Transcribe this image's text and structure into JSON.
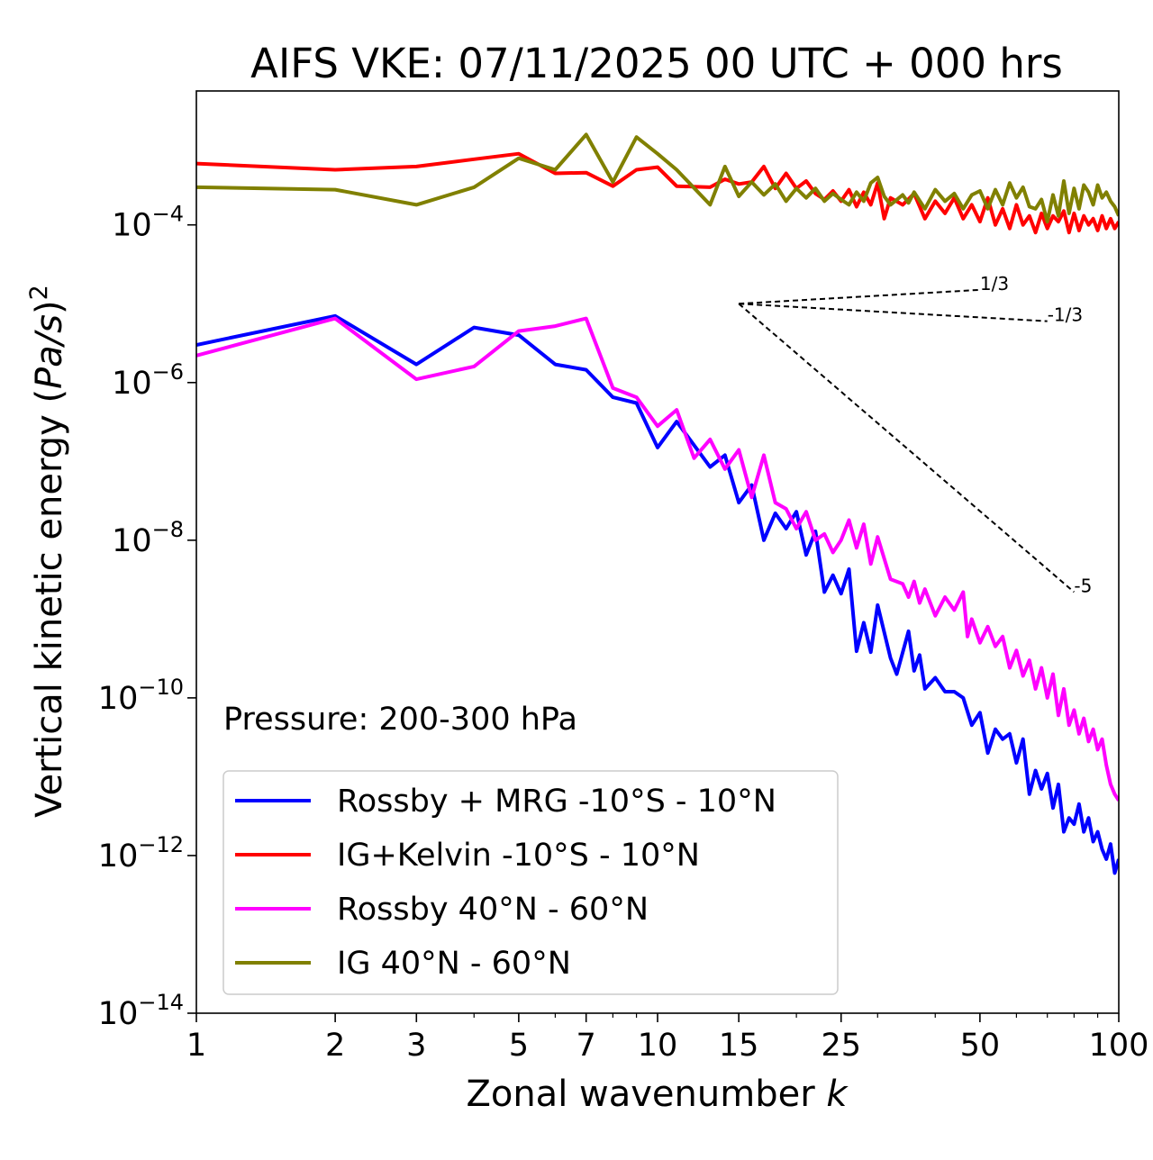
{
  "chart_data": {
    "type": "line",
    "title": "AIFS VKE: 07/11/2025 00 UTC + 000 hrs",
    "xlabel": "Zonal wavenumber k",
    "ylabel": "Vertical kinetic energy (Pa/s)^2",
    "xscale": "log",
    "yscale": "log",
    "xlim": [
      1,
      100
    ],
    "ylim": [
      1e-14,
      0.005
    ],
    "x_ticks": [
      1,
      2,
      3,
      5,
      7,
      10,
      15,
      25,
      50,
      100
    ],
    "x_tick_labels": [
      "1",
      "2",
      "3",
      "5",
      "7",
      "10",
      "15",
      "25",
      "50",
      "100"
    ],
    "y_ticks": [
      {
        "value": 0.0001,
        "base": "10",
        "exp": "−4"
      },
      {
        "value": 1e-06,
        "base": "10",
        "exp": "−6"
      },
      {
        "value": 1e-08,
        "base": "10",
        "exp": "−8"
      },
      {
        "value": 1e-10,
        "base": "10",
        "exp": "−10"
      },
      {
        "value": 1e-12,
        "base": "10",
        "exp": "−12"
      },
      {
        "value": 1e-14,
        "base": "10",
        "exp": "−14"
      }
    ],
    "annotation": "Pressure: 200-300 hPa",
    "legend_position": "lower-left",
    "series": [
      {
        "name": "Rossby + MRG -10°S - 10°N",
        "color": "#0000ff",
        "points": [
          [
            1,
            3e-06
          ],
          [
            2,
            7e-06
          ],
          [
            3,
            1.7e-06
          ],
          [
            4,
            5e-06
          ],
          [
            5,
            4e-06
          ],
          [
            6,
            1.7e-06
          ],
          [
            7,
            1.45e-06
          ],
          [
            8,
            6.5e-07
          ],
          [
            9,
            5.5e-07
          ],
          [
            10,
            1.5e-07
          ],
          [
            11,
            3.2e-07
          ],
          [
            13,
            8.5e-08
          ],
          [
            14,
            1.2e-07
          ],
          [
            15,
            3e-08
          ],
          [
            16,
            5e-08
          ],
          [
            17,
            1e-08
          ],
          [
            18,
            2.2e-08
          ],
          [
            19,
            1.4e-08
          ],
          [
            20,
            2.3e-08
          ],
          [
            21,
            6.5e-09
          ],
          [
            22,
            1.3e-08
          ],
          [
            23,
            2.2e-09
          ],
          [
            24,
            3.6e-09
          ],
          [
            25,
            2.1e-09
          ],
          [
            26,
            4.3e-09
          ],
          [
            27,
            3.9e-10
          ],
          [
            28,
            9e-10
          ],
          [
            29,
            3.8e-10
          ],
          [
            30,
            1.5e-09
          ],
          [
            32,
            3.2e-10
          ],
          [
            33,
            2e-10
          ],
          [
            35,
            7e-10
          ],
          [
            36,
            2.2e-10
          ],
          [
            37,
            3.5e-10
          ],
          [
            38,
            1.3e-10
          ],
          [
            40,
            1.8e-10
          ],
          [
            42,
            1.2e-10
          ],
          [
            44,
            1.2e-10
          ],
          [
            46,
            1e-10
          ],
          [
            48,
            4.5e-11
          ],
          [
            50,
            6.5e-11
          ],
          [
            52,
            2e-11
          ],
          [
            54,
            4e-11
          ],
          [
            56,
            3e-11
          ],
          [
            58,
            3.5e-11
          ],
          [
            60,
            1.5e-11
          ],
          [
            62,
            3e-11
          ],
          [
            64,
            6e-12
          ],
          [
            66,
            1.2e-11
          ],
          [
            68,
            7e-12
          ],
          [
            70,
            1.1e-11
          ],
          [
            72,
            4e-12
          ],
          [
            74,
            8e-12
          ],
          [
            76,
            2e-12
          ],
          [
            78,
            3e-12
          ],
          [
            80,
            2.5e-12
          ],
          [
            82,
            4.5e-12
          ],
          [
            84,
            2e-12
          ],
          [
            86,
            3e-12
          ],
          [
            88,
            1.5e-12
          ],
          [
            90,
            2e-12
          ],
          [
            92,
            1.2e-12
          ],
          [
            94,
            9e-13
          ],
          [
            96,
            1.4e-12
          ],
          [
            98,
            6e-13
          ],
          [
            100,
            9e-13
          ]
        ]
      },
      {
        "name": "IG+Kelvin -10°S - 10°N",
        "color": "#ff0000",
        "points": [
          [
            1,
            0.0006
          ],
          [
            2,
            0.0005
          ],
          [
            3,
            0.00055
          ],
          [
            4,
            0.00068
          ],
          [
            5,
            0.0008
          ],
          [
            6,
            0.00045
          ],
          [
            7,
            0.00046
          ],
          [
            8,
            0.00031
          ],
          [
            9,
            0.0005
          ],
          [
            10,
            0.00054
          ],
          [
            11,
            0.00031
          ],
          [
            13,
            0.0003
          ],
          [
            14,
            0.00038
          ],
          [
            15,
            0.00033
          ],
          [
            16,
            0.00035
          ],
          [
            17,
            0.00055
          ],
          [
            18,
            0.00029
          ],
          [
            19,
            0.00045
          ],
          [
            20,
            0.00029
          ],
          [
            21,
            0.00036
          ],
          [
            22,
            0.00025
          ],
          [
            23,
            0.00021
          ],
          [
            24,
            0.00027
          ],
          [
            25,
            0.0002
          ],
          [
            26,
            0.00028
          ],
          [
            27,
            0.00017
          ],
          [
            28,
            0.00026
          ],
          [
            29,
            0.00018
          ],
          [
            30,
            0.00034
          ],
          [
            31,
            0.00012
          ],
          [
            32,
            0.00022
          ],
          [
            34,
            0.00018
          ],
          [
            36,
            0.00025
          ],
          [
            38,
            0.00012
          ],
          [
            40,
            0.0002
          ],
          [
            42,
            0.00014
          ],
          [
            44,
            0.00022
          ],
          [
            46,
            0.00012
          ],
          [
            48,
            0.00018
          ],
          [
            50,
            0.00011
          ],
          [
            52,
            0.00022
          ],
          [
            54,
            0.0001
          ],
          [
            56,
            0.00016
          ],
          [
            58,
            9e-05
          ],
          [
            60,
            0.00018
          ],
          [
            62,
            0.0001
          ],
          [
            64,
            0.00013
          ],
          [
            66,
            8e-05
          ],
          [
            68,
            0.00014
          ],
          [
            70,
            9e-05
          ],
          [
            72,
            0.00013
          ],
          [
            74,
            0.00011
          ],
          [
            76,
            0.00015
          ],
          [
            78,
            8e-05
          ],
          [
            80,
            0.00014
          ],
          [
            82,
            8.5e-05
          ],
          [
            84,
            0.00013
          ],
          [
            86,
            0.0001
          ],
          [
            88,
            0.00012
          ],
          [
            90,
            8.5e-05
          ],
          [
            92,
            0.00013
          ],
          [
            94,
            9e-05
          ],
          [
            96,
            0.00012
          ],
          [
            98,
            9e-05
          ],
          [
            100,
            0.00011
          ]
        ]
      },
      {
        "name": "Rossby 40°N - 60°N",
        "color": "#ff00ff",
        "points": [
          [
            1,
            2.2e-06
          ],
          [
            2,
            6.5e-06
          ],
          [
            3,
            1.1e-06
          ],
          [
            4,
            1.6e-06
          ],
          [
            5,
            4.5e-06
          ],
          [
            6,
            5.2e-06
          ],
          [
            7,
            6.5e-06
          ],
          [
            8,
            8.5e-07
          ],
          [
            9,
            6.5e-07
          ],
          [
            10,
            2.8e-07
          ],
          [
            11,
            4.5e-07
          ],
          [
            12,
            1.1e-07
          ],
          [
            13,
            1.9e-07
          ],
          [
            14,
            8e-08
          ],
          [
            15,
            1.4e-07
          ],
          [
            16,
            3.5e-08
          ],
          [
            17,
            1.2e-07
          ],
          [
            18,
            3e-08
          ],
          [
            19,
            2.5e-08
          ],
          [
            20,
            1.4e-08
          ],
          [
            21,
            2.3e-08
          ],
          [
            22,
            1e-08
          ],
          [
            23,
            1.2e-08
          ],
          [
            24,
            7e-09
          ],
          [
            25,
            1e-08
          ],
          [
            26,
            1.8e-08
          ],
          [
            27,
            8e-09
          ],
          [
            28,
            1.6e-08
          ],
          [
            29,
            5e-09
          ],
          [
            30,
            1.1e-08
          ],
          [
            32,
            3.2e-09
          ],
          [
            34,
            2.8e-09
          ],
          [
            35,
            1.9e-09
          ],
          [
            36,
            3e-09
          ],
          [
            37,
            1.6e-09
          ],
          [
            38,
            2.4e-09
          ],
          [
            40,
            1.1e-09
          ],
          [
            42,
            1.9e-09
          ],
          [
            44,
            1.3e-09
          ],
          [
            46,
            2.2e-09
          ],
          [
            47,
            6e-10
          ],
          [
            48,
            1e-09
          ],
          [
            50,
            5e-10
          ],
          [
            52,
            8e-10
          ],
          [
            54,
            4.5e-10
          ],
          [
            56,
            6e-10
          ],
          [
            58,
            2.4e-10
          ],
          [
            60,
            4e-10
          ],
          [
            62,
            1.9e-10
          ],
          [
            64,
            3e-10
          ],
          [
            66,
            1.3e-10
          ],
          [
            68,
            2.4e-10
          ],
          [
            70,
            1e-10
          ],
          [
            72,
            2e-10
          ],
          [
            74,
            6e-11
          ],
          [
            76,
            1.3e-10
          ],
          [
            78,
            4.5e-11
          ],
          [
            80,
            7e-11
          ],
          [
            82,
            3.5e-11
          ],
          [
            84,
            5.5e-11
          ],
          [
            86,
            2.8e-11
          ],
          [
            88,
            4e-11
          ],
          [
            90,
            2.2e-11
          ],
          [
            92,
            3e-11
          ],
          [
            94,
            1.4e-11
          ],
          [
            96,
            8e-12
          ],
          [
            98,
            6e-12
          ],
          [
            100,
            5e-12
          ]
        ]
      },
      {
        "name": "IG 40°N - 60°N",
        "color": "#808000",
        "points": [
          [
            1,
            0.0003
          ],
          [
            2,
            0.00028
          ],
          [
            3,
            0.00018
          ],
          [
            4,
            0.0003
          ],
          [
            5,
            0.0007
          ],
          [
            6,
            0.0005
          ],
          [
            7,
            0.0014
          ],
          [
            8,
            0.00035
          ],
          [
            9,
            0.0013
          ],
          [
            10,
            0.0008
          ],
          [
            11,
            0.0005
          ],
          [
            13,
            0.00018
          ],
          [
            14,
            0.00055
          ],
          [
            15,
            0.00023
          ],
          [
            16,
            0.00035
          ],
          [
            17,
            0.00024
          ],
          [
            18,
            0.00033
          ],
          [
            19,
            0.0002
          ],
          [
            20,
            0.00029
          ],
          [
            21,
            0.00022
          ],
          [
            22,
            0.00029
          ],
          [
            23,
            0.0002
          ],
          [
            24,
            0.00025
          ],
          [
            25,
            0.00021
          ],
          [
            26,
            0.00018
          ],
          [
            27,
            0.00026
          ],
          [
            28,
            0.0002
          ],
          [
            29,
            0.00034
          ],
          [
            30,
            0.0004
          ],
          [
            31,
            0.00023
          ],
          [
            32,
            0.00018
          ],
          [
            34,
            0.00024
          ],
          [
            35,
            0.00019
          ],
          [
            36,
            0.00026
          ],
          [
            38,
            0.00016
          ],
          [
            40,
            0.00028
          ],
          [
            42,
            0.0002
          ],
          [
            44,
            0.00025
          ],
          [
            46,
            0.00016
          ],
          [
            48,
            0.00024
          ],
          [
            50,
            0.00027
          ],
          [
            52,
            0.00016
          ],
          [
            54,
            0.00028
          ],
          [
            56,
            0.00018
          ],
          [
            58,
            0.00034
          ],
          [
            60,
            0.00022
          ],
          [
            62,
            0.0003
          ],
          [
            64,
            0.00017
          ],
          [
            66,
            0.00016
          ],
          [
            68,
            0.00021
          ],
          [
            70,
            0.00011
          ],
          [
            72,
            0.00024
          ],
          [
            74,
            0.00013
          ],
          [
            76,
            0.00036
          ],
          [
            78,
            0.00014
          ],
          [
            80,
            0.00029
          ],
          [
            82,
            0.00016
          ],
          [
            84,
            0.00032
          ],
          [
            86,
            0.00026
          ],
          [
            88,
            0.00018
          ],
          [
            90,
            0.00032
          ],
          [
            92,
            0.00022
          ],
          [
            94,
            0.00026
          ],
          [
            96,
            0.0002
          ],
          [
            98,
            0.00017
          ],
          [
            100,
            0.00013
          ]
        ]
      }
    ],
    "reference_lines": [
      {
        "label": "1/3",
        "slope": 0.333,
        "from": [
          15,
          1e-05
        ],
        "to": [
          50,
          1.5e-05
        ]
      },
      {
        "label": "-1/3",
        "slope": -0.333,
        "from": [
          15,
          1e-05
        ],
        "to": [
          70,
          6e-06
        ]
      },
      {
        "label": "-5",
        "slope": -5,
        "from": [
          15,
          1e-05
        ],
        "to": [
          80,
          2.2e-09
        ]
      }
    ]
  }
}
